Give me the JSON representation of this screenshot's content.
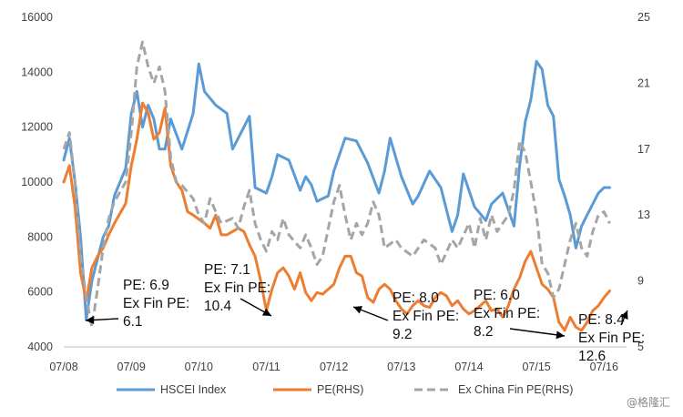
{
  "chart_data": {
    "type": "line",
    "title": "",
    "xlabel": "",
    "ylabel": "",
    "x_ticks": [
      "07/08",
      "07/09",
      "07/10",
      "07/11",
      "07/12",
      "07/13",
      "07/14",
      "07/15",
      "07/16"
    ],
    "xlim": [
      "07/08",
      "11/16"
    ],
    "y_left": {
      "lim": [
        4000,
        16000
      ],
      "ticks": [
        "4000",
        "6000",
        "8000",
        "10000",
        "12000",
        "14000",
        "16000"
      ]
    },
    "y_right": {
      "lim": [
        5,
        25
      ],
      "ticks": [
        "5",
        "9",
        "13",
        "17",
        "21",
        "25"
      ]
    },
    "grid": false,
    "legend_position": "bottom",
    "series": [
      {
        "name": "HSCEI Index",
        "axis": "left",
        "color": "#5b9bd5",
        "style": "solid",
        "points": [
          [
            0,
            10800
          ],
          [
            1,
            11600
          ],
          [
            2,
            10000
          ],
          [
            3,
            8000
          ],
          [
            4,
            5000
          ],
          [
            5,
            6400
          ],
          [
            6,
            7200
          ],
          [
            7,
            8000
          ],
          [
            8,
            8400
          ],
          [
            9,
            9500
          ],
          [
            11,
            10500
          ],
          [
            12,
            12500
          ],
          [
            13,
            13300
          ],
          [
            14,
            12000
          ],
          [
            15,
            12800
          ],
          [
            16,
            12300
          ],
          [
            17,
            11200
          ],
          [
            18,
            11200
          ],
          [
            19,
            12300
          ],
          [
            21,
            11200
          ],
          [
            23,
            12500
          ],
          [
            24,
            14300
          ],
          [
            25,
            13300
          ],
          [
            27,
            12800
          ],
          [
            29,
            12500
          ],
          [
            30,
            11200
          ],
          [
            32,
            12000
          ],
          [
            33,
            12400
          ],
          [
            34,
            9800
          ],
          [
            36,
            9600
          ],
          [
            37,
            10200
          ],
          [
            38,
            11000
          ],
          [
            40,
            10800
          ],
          [
            42,
            9700
          ],
          [
            43,
            10200
          ],
          [
            44,
            9900
          ],
          [
            45,
            9300
          ],
          [
            47,
            9500
          ],
          [
            48,
            10400
          ],
          [
            50,
            11600
          ],
          [
            52,
            11500
          ],
          [
            54,
            10700
          ],
          [
            56,
            9600
          ],
          [
            57,
            10400
          ],
          [
            58,
            11600
          ],
          [
            60,
            10200
          ],
          [
            62,
            9200
          ],
          [
            63,
            9500
          ],
          [
            65,
            10400
          ],
          [
            67,
            9800
          ],
          [
            69,
            8200
          ],
          [
            70,
            8800
          ],
          [
            71,
            10300
          ],
          [
            73,
            9100
          ],
          [
            75,
            8600
          ],
          [
            76,
            9200
          ],
          [
            78,
            9600
          ],
          [
            80,
            8400
          ],
          [
            81,
            10600
          ],
          [
            82,
            12200
          ],
          [
            83,
            13000
          ],
          [
            84,
            14400
          ],
          [
            85,
            14100
          ],
          [
            86,
            12800
          ],
          [
            87,
            12400
          ],
          [
            88,
            10100
          ],
          [
            89,
            9500
          ],
          [
            90,
            8800
          ],
          [
            91,
            7600
          ],
          [
            92,
            8400
          ],
          [
            93,
            8800
          ],
          [
            94,
            9200
          ],
          [
            95,
            9600
          ],
          [
            96,
            9800
          ],
          [
            97,
            9800
          ]
        ]
      },
      {
        "name": "PE(RHS)",
        "axis": "right",
        "color": "#ed7d31",
        "style": "solid",
        "points": [
          [
            0,
            15.0
          ],
          [
            1,
            16.0
          ],
          [
            2,
            13.5
          ],
          [
            3,
            9.5
          ],
          [
            4,
            7.8
          ],
          [
            5,
            9.8
          ],
          [
            6,
            10.5
          ],
          [
            7,
            11.0
          ],
          [
            8,
            11.8
          ],
          [
            9,
            12.5
          ],
          [
            11,
            13.7
          ],
          [
            12,
            16.0
          ],
          [
            13,
            17.6
          ],
          [
            14,
            19.8
          ],
          [
            15,
            19.2
          ],
          [
            16,
            17.6
          ],
          [
            17,
            18.0
          ],
          [
            18,
            19.5
          ],
          [
            19,
            16.0
          ],
          [
            20,
            15.0
          ],
          [
            21,
            14.5
          ],
          [
            22,
            13.2
          ],
          [
            23,
            13.0
          ],
          [
            25,
            12.5
          ],
          [
            26,
            12.2
          ],
          [
            27,
            13.0
          ],
          [
            28,
            11.8
          ],
          [
            29,
            11.8
          ],
          [
            30,
            12.0
          ],
          [
            31,
            12.2
          ],
          [
            32,
            12.0
          ],
          [
            33,
            11.2
          ],
          [
            34,
            10.5
          ],
          [
            35,
            9.0
          ],
          [
            36,
            7.2
          ],
          [
            37,
            8.5
          ],
          [
            38,
            9.5
          ],
          [
            39,
            9.8
          ],
          [
            40,
            9.3
          ],
          [
            41,
            8.5
          ],
          [
            42,
            9.5
          ],
          [
            43,
            8.3
          ],
          [
            44,
            7.8
          ],
          [
            45,
            8.3
          ],
          [
            46,
            8.2
          ],
          [
            47,
            8.5
          ],
          [
            48,
            8.8
          ],
          [
            49,
            9.8
          ],
          [
            50,
            10.5
          ],
          [
            51,
            10.5
          ],
          [
            52,
            9.5
          ],
          [
            53,
            9.3
          ],
          [
            54,
            8.0
          ],
          [
            55,
            7.7
          ],
          [
            56,
            8.5
          ],
          [
            57,
            8.8
          ],
          [
            58,
            8.5
          ],
          [
            59,
            7.8
          ],
          [
            60,
            7.3
          ],
          [
            61,
            7.0
          ],
          [
            62,
            7.5
          ],
          [
            63,
            7.8
          ],
          [
            64,
            7.5
          ],
          [
            65,
            7.4
          ],
          [
            66,
            8.0
          ],
          [
            67,
            8.3
          ],
          [
            68,
            8.1
          ],
          [
            69,
            7.5
          ],
          [
            70,
            7.8
          ],
          [
            71,
            7.3
          ],
          [
            72,
            7.0
          ],
          [
            73,
            7.2
          ],
          [
            74,
            7.5
          ],
          [
            75,
            7.8
          ],
          [
            76,
            7.2
          ],
          [
            77,
            7.3
          ],
          [
            78,
            6.8
          ],
          [
            79,
            7.5
          ],
          [
            80,
            8.5
          ],
          [
            81,
            9.2
          ],
          [
            82,
            10.2
          ],
          [
            83,
            10.8
          ],
          [
            84,
            9.8
          ],
          [
            85,
            8.8
          ],
          [
            86,
            8.5
          ],
          [
            87,
            8.0
          ],
          [
            88,
            6.5
          ],
          [
            89,
            6.0
          ],
          [
            90,
            6.8
          ],
          [
            91,
            6.2
          ],
          [
            92,
            6.0
          ],
          [
            93,
            6.5
          ],
          [
            94,
            7.2
          ],
          [
            95,
            7.5
          ],
          [
            96,
            8.0
          ],
          [
            97,
            8.4
          ]
        ]
      },
      {
        "name": "Ex China Fin PE(RHS)",
        "axis": "right",
        "color": "#a5a5a5",
        "style": "dashed",
        "points": [
          [
            0,
            17.0
          ],
          [
            1,
            18.0
          ],
          [
            2,
            15.0
          ],
          [
            3,
            10.5
          ],
          [
            4,
            8.0
          ],
          [
            5,
            6.2
          ],
          [
            6,
            8.5
          ],
          [
            7,
            11.0
          ],
          [
            8,
            12.8
          ],
          [
            9,
            13.8
          ],
          [
            11,
            15.0
          ],
          [
            12,
            18.0
          ],
          [
            13,
            22.0
          ],
          [
            14,
            23.5
          ],
          [
            15,
            22.0
          ],
          [
            16,
            21.0
          ],
          [
            17,
            22.0
          ],
          [
            18,
            20.5
          ],
          [
            19,
            16.5
          ],
          [
            20,
            15.0
          ],
          [
            21,
            14.8
          ],
          [
            23,
            14.0
          ],
          [
            24,
            13.0
          ],
          [
            25,
            12.5
          ],
          [
            26,
            14.0
          ],
          [
            27,
            13.2
          ],
          [
            28,
            12.5
          ],
          [
            30,
            12.8
          ],
          [
            31,
            12.2
          ],
          [
            32,
            13.5
          ],
          [
            33,
            14.5
          ],
          [
            34,
            12.5
          ],
          [
            35,
            11.5
          ],
          [
            36,
            10.8
          ],
          [
            37,
            12.0
          ],
          [
            38,
            11.5
          ],
          [
            39,
            12.8
          ],
          [
            40,
            11.8
          ],
          [
            42,
            11.0
          ],
          [
            43,
            11.8
          ],
          [
            44,
            11.0
          ],
          [
            45,
            10.0
          ],
          [
            46,
            10.5
          ],
          [
            47,
            12.2
          ],
          [
            48,
            13.8
          ],
          [
            49,
            14.8
          ],
          [
            50,
            13.0
          ],
          [
            51,
            11.5
          ],
          [
            52,
            12.5
          ],
          [
            53,
            11.8
          ],
          [
            54,
            12.5
          ],
          [
            55,
            13.8
          ],
          [
            56,
            13.0
          ],
          [
            57,
            11.0
          ],
          [
            59,
            11.5
          ],
          [
            60,
            11.0
          ],
          [
            62,
            10.5
          ],
          [
            64,
            11.5
          ],
          [
            66,
            11.0
          ],
          [
            67,
            10.0
          ],
          [
            69,
            11.5
          ],
          [
            70,
            11.0
          ],
          [
            72,
            12.5
          ],
          [
            73,
            11.0
          ],
          [
            74,
            12.8
          ],
          [
            75,
            11.5
          ],
          [
            76,
            13.0
          ],
          [
            77,
            12.0
          ],
          [
            78,
            12.5
          ],
          [
            79,
            13.0
          ],
          [
            80,
            14.5
          ],
          [
            81,
            17.5
          ],
          [
            82,
            16.8
          ],
          [
            83,
            15.0
          ],
          [
            84,
            13.0
          ],
          [
            85,
            10.0
          ],
          [
            86,
            9.5
          ],
          [
            87,
            8.0
          ],
          [
            88,
            8.5
          ],
          [
            89,
            10.0
          ],
          [
            90,
            11.5
          ],
          [
            91,
            12.5
          ],
          [
            92,
            11.0
          ],
          [
            93,
            10.5
          ],
          [
            94,
            12.0
          ],
          [
            95,
            13.0
          ],
          [
            96,
            13.2
          ],
          [
            97,
            12.5
          ]
        ]
      }
    ],
    "annotations": [
      {
        "lines": [
          "PE: 6.9",
          "Ex Fin PE:",
          "6.1"
        ]
      },
      {
        "lines": [
          "PE: 7.1",
          "Ex Fin PE:",
          "10.4"
        ]
      },
      {
        "lines": [
          "PE: 8.0",
          "Ex Fin PE:",
          "9.2"
        ]
      },
      {
        "lines": [
          "PE: 6.0",
          "Ex Fin PE:",
          "8.2"
        ]
      },
      {
        "lines": [
          "PE: 8.4",
          "Ex Fin PE:",
          "12.6"
        ]
      }
    ]
  },
  "watermark": "@格隆汇"
}
